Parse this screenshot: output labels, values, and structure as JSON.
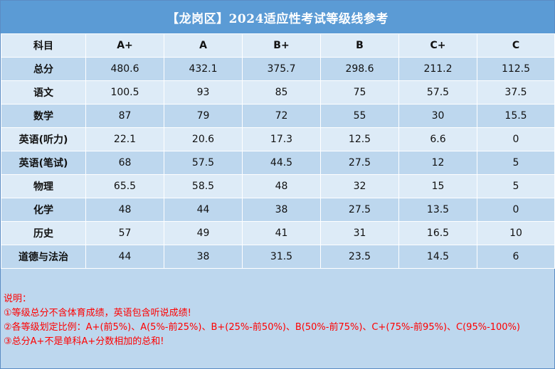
{
  "title": "【龙岗区】2024适应性考试等级线参考",
  "columns": [
    "科目",
    "A+",
    "A",
    "B+",
    "B",
    "C+",
    "C"
  ],
  "rows": [
    {
      "subject": "总分",
      "values": [
        "480.6",
        "432.1",
        "375.7",
        "298.6",
        "211.2",
        "112.5"
      ]
    },
    {
      "subject": "语文",
      "values": [
        "100.5",
        "93",
        "85",
        "75",
        "57.5",
        "37.5"
      ]
    },
    {
      "subject": "数学",
      "values": [
        "87",
        "79",
        "72",
        "55",
        "30",
        "15.5"
      ]
    },
    {
      "subject": "英语(听力)",
      "values": [
        "22.1",
        "20.6",
        "17.3",
        "12.5",
        "6.6",
        "0"
      ]
    },
    {
      "subject": "英语(笔试)",
      "values": [
        "68",
        "57.5",
        "44.5",
        "27.5",
        "12",
        "5"
      ]
    },
    {
      "subject": "物理",
      "values": [
        "65.5",
        "58.5",
        "48",
        "32",
        "15",
        "5"
      ]
    },
    {
      "subject": "化学",
      "values": [
        "48",
        "44",
        "38",
        "27.5",
        "13.5",
        "0"
      ]
    },
    {
      "subject": "历史",
      "values": [
        "57",
        "49",
        "41",
        "31",
        "16.5",
        "10"
      ]
    },
    {
      "subject": "道德与法治",
      "values": [
        "44",
        "38",
        "31.5",
        "23.5",
        "14.5",
        "6"
      ]
    }
  ],
  "notes": {
    "heading": "说明：",
    "items": [
      "①等级总分不含体育成绩，英语包含听说成绩!",
      "②各等级划定比例：A+(前5%)、A(5%-前25%)、B+(25%-前50%)、B(50%-前75%)、C+(75%-前95%)、C(95%-100%)",
      "③总分A+不是单科A+分数相加的总和!"
    ]
  },
  "colors": {
    "title_bg": "#5b9bd5",
    "row_light": "#ddebf7",
    "row_dark": "#bdd7ee",
    "note_text": "#ff0000"
  }
}
